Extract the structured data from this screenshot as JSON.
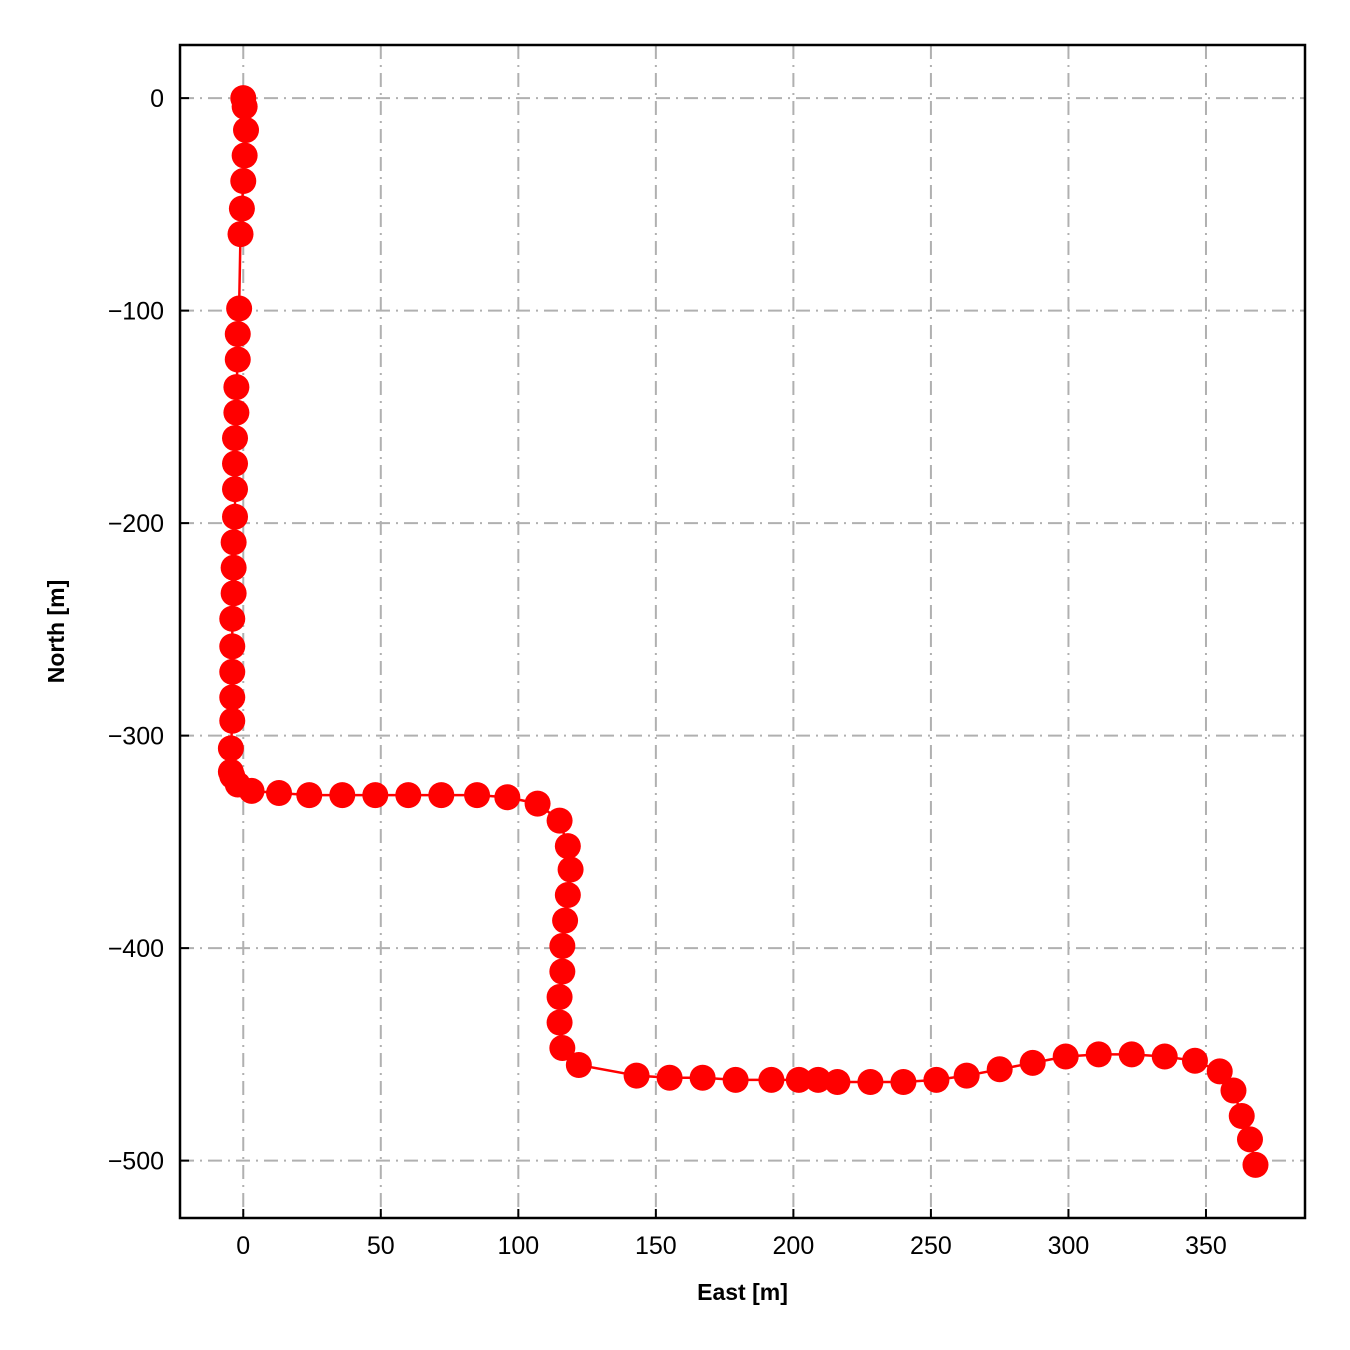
{
  "chart_data": {
    "type": "line",
    "title": "",
    "xlabel": "East [m]",
    "ylabel": "North [m]",
    "xlim": [
      -23,
      386
    ],
    "ylim": [
      -527,
      25
    ],
    "xticks": [
      0,
      50,
      100,
      150,
      200,
      250,
      300,
      350
    ],
    "yticks": [
      0,
      -100,
      -200,
      -300,
      -400,
      -500
    ],
    "xtick_labels": [
      "0",
      "50",
      "100",
      "150",
      "200",
      "250",
      "300",
      "350"
    ],
    "ytick_labels": [
      "0",
      "−100",
      "−200",
      "−300",
      "−400",
      "−500"
    ],
    "grid": true,
    "legend": "none",
    "series": [
      {
        "color": "#ff0000",
        "marker": "circle",
        "x": [
          0,
          0.5,
          1,
          0.5,
          0,
          -0.5,
          -1,
          -1.5,
          -2,
          -2,
          -2.5,
          -2.5,
          -3,
          -3,
          -3,
          -3,
          -3.5,
          -3.5,
          -3.5,
          -4,
          -4,
          -4,
          -4,
          -4,
          -4.5,
          -4.5,
          -4,
          -2,
          3,
          13,
          24,
          36,
          48,
          60,
          72,
          85,
          96,
          107,
          115,
          118,
          119,
          118,
          117,
          116,
          116,
          115,
          115,
          116,
          122,
          143,
          155,
          167,
          179,
          192,
          202,
          209,
          216,
          228,
          240,
          252,
          263,
          275,
          287,
          299,
          311,
          323,
          335,
          346,
          355,
          360,
          363,
          366,
          368
        ],
        "y": [
          0,
          -4,
          -15,
          -27,
          -39,
          -52,
          -64,
          -99,
          -111,
          -123,
          -136,
          -148,
          -160,
          -172,
          -184,
          -197,
          -209,
          -221,
          -233,
          -245,
          -258,
          -270,
          -282,
          -293,
          -306,
          -317,
          -319,
          -323,
          -326,
          -327,
          -328,
          -328,
          -328,
          -328,
          -328,
          -328,
          -329,
          -332,
          -340,
          -352,
          -363,
          -375,
          -387,
          -399,
          -411,
          -423,
          -435,
          -447,
          -455,
          -460,
          -461,
          -461,
          -462,
          -462,
          -462,
          -462,
          -463,
          -463,
          -463,
          -462,
          -460,
          -457,
          -454,
          -451,
          -450,
          -450,
          -451,
          -453,
          -458,
          -467,
          -479,
          -490,
          -502
        ]
      }
    ]
  }
}
